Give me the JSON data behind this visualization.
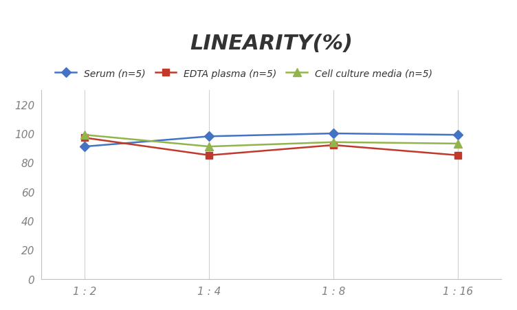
{
  "title": "LINEARITY(%)",
  "x_labels": [
    "1 : 2",
    "1 : 4",
    "1 : 8",
    "1 : 16"
  ],
  "x_positions": [
    0,
    1,
    2,
    3
  ],
  "series": [
    {
      "label": "Serum (n=5)",
      "values": [
        91,
        98,
        100,
        99
      ],
      "color": "#4472C4",
      "marker": "D",
      "marker_size": 7,
      "linewidth": 1.8
    },
    {
      "label": "EDTA plasma (n=5)",
      "values": [
        97,
        85,
        92,
        85
      ],
      "color": "#C0392B",
      "marker": "s",
      "marker_size": 7,
      "linewidth": 1.8
    },
    {
      "label": "Cell culture media (n=5)",
      "values": [
        99,
        91,
        94,
        93
      ],
      "color": "#92B44B",
      "marker": "^",
      "marker_size": 8,
      "linewidth": 1.8
    }
  ],
  "ylim": [
    0,
    130
  ],
  "yticks": [
    0,
    20,
    40,
    60,
    80,
    100,
    120
  ],
  "grid_color": "#D0D0D0",
  "background_color": "#FFFFFF",
  "title_fontsize": 22,
  "title_style": "italic",
  "title_weight": "bold",
  "legend_fontsize": 10,
  "tick_fontsize": 11,
  "tick_color": "#808080"
}
